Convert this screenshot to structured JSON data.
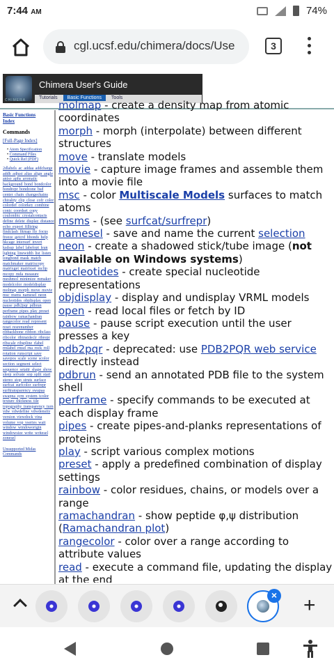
{
  "status": {
    "time": "7:44",
    "ampm": "AM",
    "battery": "74%"
  },
  "browser": {
    "url": "cgl.ucsf.edu/chimera/docs/Use",
    "tab_count": "3"
  },
  "banner": {
    "title": "Chimera User's Guide",
    "logo_text": "CHIMERA",
    "tabs": [
      "Tutorials",
      "Basic Functions",
      "Tools"
    ]
  },
  "index": {
    "top_links": [
      "Basic Functions",
      "Index"
    ],
    "heading": "Commands",
    "full_page": "[Full-Page Index]",
    "specs": [
      "Atom Specification",
      "Command Files",
      "Quick Ref (PDF)"
    ],
    "commands": "2dlabels ac addaa addcharge addh adjust alias align angle aniso aphs aromatic background bond bondcolor bondrepr bondzone bsd center chain changechains chirality clip close cofr color colordef colorkey combine conic coordset copy coulombic crystalcontacts define delete display distance echo export filltring findclash fitmap fly focus freeze getcrd hbonds help hkcage intersurf invert ksdssp label labelopt lean lighting linewidth list listen longbond mask match matchmaker matrixcopy matrixget matrixset mclip mcopy mda measure meshmol minimize mmaker modelcolor modeldisplay molmap morph move movie msc msms namesel neon nucleotides objdisplay open pause pdb2pqr pdbrun perframe pipes play preset rainbow ramachandran rangecolor read represent reset resrenumber ribbackbone ribbon ribclass ribcolor ribinsideclr ribrepr ribscale ribspline rlabel rmlabel rmsd rna rock roll rotation runscript save savepos scale scene scolor section segment select sequence setattr shape show sleep solvate sop split start stereo stop struts surface surfcat surfcolor surfrepr surftransparency swapaa swapna sym system tcolor texture thickness tile topography transparency turn vdw vdwdefine vdwdensity version viewdock vina volume vop vseries wait window windoworigin windowsize write writesel zonesel",
    "footer": [
      "Unsupported Midas",
      "Commands"
    ]
  },
  "main": {
    "lines": [
      {
        "cmd": "molmap",
        "desc": " - create a density map from atomic coordinates"
      },
      {
        "cmd": "morph",
        "desc": " - morph (interpolate) between different structures"
      },
      {
        "cmd": "move",
        "desc": " - translate models"
      },
      {
        "cmd": "movie",
        "desc": " - capture image frames and assemble them into a movie file"
      },
      {
        "cmd": "msc",
        "pre": " - color ",
        "link": "Multiscale Models",
        "post": " surfaces to match atoms"
      },
      {
        "cmd": "msms",
        "pre": " - (see ",
        "link": "surfcat/surfrepr",
        "post": ")"
      },
      {
        "cmd": "namesel",
        "pre": " - save and name the current ",
        "link": "selection",
        "post": ""
      },
      {
        "cmd": "neon",
        "pre": " - create a shadowed stick/tube image (",
        "bold": "not available on Windows systems",
        "post": ")"
      },
      {
        "cmd": "nucleotides",
        "desc": " - create special nucleotide representations"
      },
      {
        "cmd": "objdisplay",
        "desc": " - display and undisplay VRML models"
      },
      {
        "cmd": "open",
        "desc": " - read local files or fetch by ID"
      },
      {
        "cmd": "pause",
        "desc": " - pause script execution until the user presses a key"
      },
      {
        "cmd": "pdb2pqr",
        "pre": " - deprecated: use ",
        "link": "PDB2PQR web service",
        "post": " directly instead"
      },
      {
        "cmd": "pdbrun",
        "desc": " - send an annotated PDB file to the system shell"
      },
      {
        "cmd": "perframe",
        "desc": " - specify commands to be executed at each display frame"
      },
      {
        "cmd": "pipes",
        "desc": " - create pipes-and-planks representations of proteins"
      },
      {
        "cmd": "play",
        "desc": " - script various complex motions"
      },
      {
        "cmd": "preset",
        "desc": " - apply a predefined combination of display settings"
      },
      {
        "cmd": "rainbow",
        "desc": " - color residues, chains, or models over a range"
      },
      {
        "cmd": "ramachandran",
        "pre": " - show peptide φ,ψ distribution (",
        "link": "Ramachandran plot",
        "post": ")"
      },
      {
        "cmd": "rangecolor",
        "desc": " - color over a range according to attribute values"
      },
      {
        "cmd": "read",
        "desc": " - execute a command file, updating the display at the end"
      }
    ]
  },
  "colors": {
    "link": "#1a3fa8",
    "active_tab": "#1a73e8"
  },
  "icons": [
    "home-icon",
    "lock-icon",
    "tab-switcher-icon",
    "overflow-menu-icon",
    "chevron-up-icon",
    "close-icon",
    "plus-icon",
    "back-icon",
    "home-circle-icon",
    "recents-icon",
    "accessibility-icon"
  ]
}
